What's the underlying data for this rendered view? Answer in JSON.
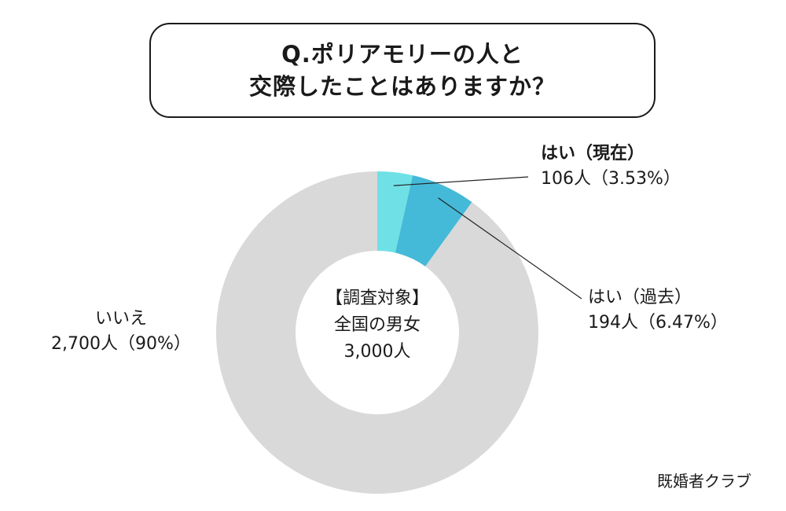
{
  "title": {
    "line1": "Q.ポリアモリーの人と",
    "line2": "交際したことはありますか？"
  },
  "center_note": {
    "line1": "【調査対象】",
    "line2": "全国の男女",
    "line3": "3,000人"
  },
  "labels": {
    "current": {
      "name": "はい（現在）",
      "value": "106人（3.53%）"
    },
    "past": {
      "name": "はい（過去）",
      "value": "194人（6.47%）"
    },
    "no": {
      "name": "いいえ",
      "value": "2,700人（90%）"
    }
  },
  "credit": "既婚者クラブ",
  "chart_data": {
    "type": "pie",
    "donut": true,
    "categories": [
      "はい（現在）",
      "はい（過去）",
      "いいえ"
    ],
    "values": [
      106,
      194,
      2700
    ],
    "percent": [
      3.53,
      6.47,
      90
    ],
    "total": 3000,
    "colors": [
      "#6fe1e6",
      "#45b9d8",
      "#d9d9d9"
    ]
  }
}
